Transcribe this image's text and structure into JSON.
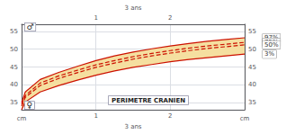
{
  "chart_data": {
    "type": "line",
    "title": "PERIMETRE CRANIEN",
    "xlabel": "3 ans",
    "ylabel": "cm",
    "annotations": [
      "♂",
      "♀"
    ],
    "x": [
      0.0,
      0.05,
      0.25,
      0.5,
      0.75,
      1.0,
      1.25,
      1.5,
      1.75,
      2.0,
      2.25,
      2.5,
      2.75,
      3.0
    ],
    "xlim": [
      0,
      3
    ],
    "xticks": [
      1,
      2
    ],
    "ylim": [
      33,
      57
    ],
    "yticks": [
      35,
      40,
      45,
      50,
      55
    ],
    "grid": true,
    "fill": {
      "between": [
        "3%",
        "97%"
      ],
      "color": "#f5dfa0"
    },
    "series": [
      {
        "name": "97%",
        "color": "#cc1100",
        "line_style": "solid",
        "values": [
          35.0,
          38.0,
          41.5,
          43.5,
          45.2,
          46.8,
          48.1,
          49.2,
          50.1,
          50.9,
          51.6,
          52.2,
          52.7,
          53.2
        ]
      },
      {
        "name": "3%",
        "color": "#cc1100",
        "line_style": "solid",
        "values": [
          33.0,
          35.2,
          38.0,
          39.8,
          41.3,
          42.7,
          43.9,
          44.9,
          45.7,
          46.5,
          47.1,
          47.6,
          48.1,
          48.6
        ]
      },
      {
        "name": "75%",
        "color": "#cc1100",
        "line_style": "dashed",
        "values": [
          34.5,
          37.0,
          40.5,
          42.5,
          44.1,
          45.6,
          46.8,
          47.9,
          48.8,
          49.6,
          50.3,
          50.9,
          51.4,
          51.9
        ]
      },
      {
        "name": "50%",
        "color": "#cc1100",
        "line_style": "dashed",
        "values": [
          34.0,
          36.5,
          39.8,
          41.8,
          43.4,
          44.9,
          46.1,
          47.2,
          48.1,
          48.9,
          49.6,
          50.2,
          50.7,
          51.2
        ]
      }
    ]
  }
}
